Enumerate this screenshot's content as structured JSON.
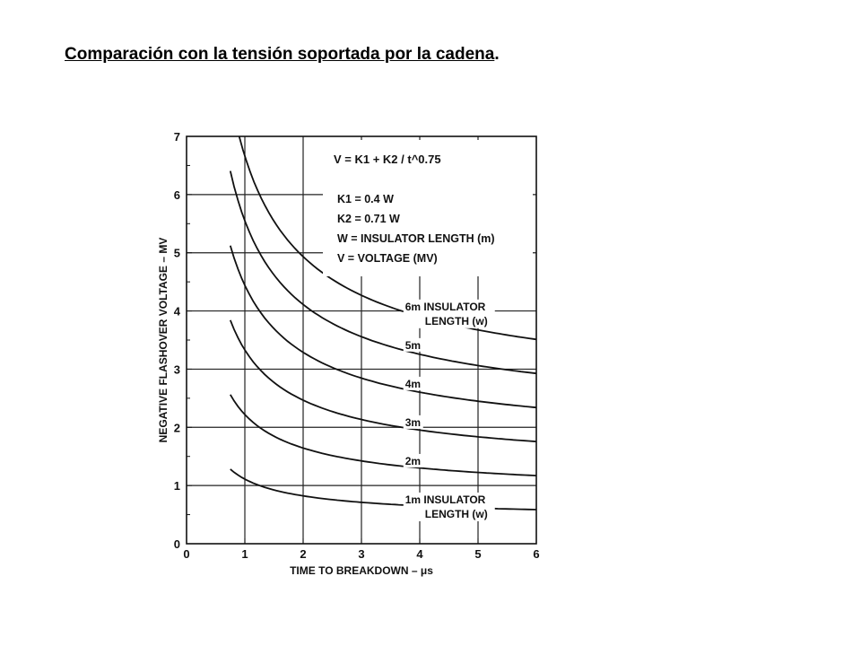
{
  "slide": {
    "title": "Comparación con la tensión soportada por la cadena",
    "title_suffix": "."
  },
  "chart_data": {
    "type": "line",
    "title": "",
    "xlabel": "TIME TO BREAKDOWN – μs",
    "ylabel": "NEGATIVE FLASHOVER VOLTAGE – MV",
    "xlim": [
      0,
      6
    ],
    "ylim": [
      0,
      7
    ],
    "xticks": [
      "0",
      "1",
      "2",
      "3",
      "4",
      "5",
      "6"
    ],
    "yticks": [
      "0",
      "1",
      "2",
      "3",
      "4",
      "5",
      "6",
      "7"
    ],
    "grid": true,
    "formula": "V = K1 + K2 / t^0.75",
    "legend": [
      "K1 = 0.4 W",
      "K2 = 0.71 W",
      "W = INSULATOR LENGTH (m)",
      "V = VOLTAGE (MV)"
    ],
    "t_range": [
      0.75,
      6
    ],
    "series": [
      {
        "name": "1m",
        "label_line1": "1m INSULATOR",
        "label_line2": "LENGTH (w)",
        "W": 1
      },
      {
        "name": "2m",
        "label_line1": "2m",
        "W": 2
      },
      {
        "name": "3m",
        "label_line1": "3m",
        "W": 3
      },
      {
        "name": "4m",
        "label_line1": "4m",
        "W": 4
      },
      {
        "name": "5m",
        "label_line1": "5m",
        "W": 5
      },
      {
        "name": "6m",
        "label_line1": "6m INSULATOR",
        "label_line2": "LENGTH (w)",
        "W": 6
      }
    ]
  }
}
